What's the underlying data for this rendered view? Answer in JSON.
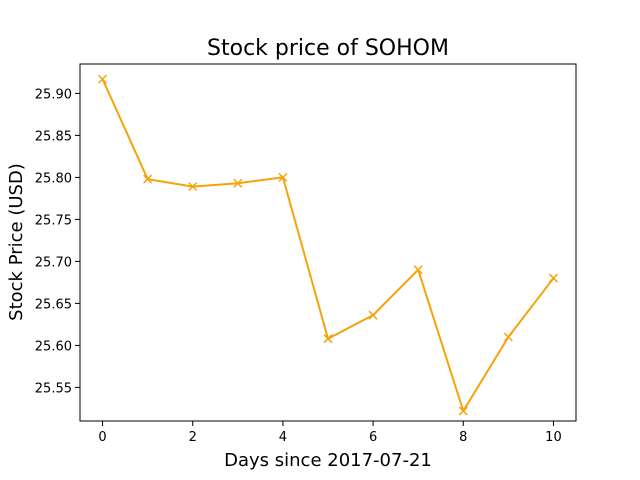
{
  "chart_data": {
    "type": "line",
    "title": "Stock price of SOHOM",
    "xlabel": "Days since 2017-07-21",
    "ylabel": "Stock Price (USD)",
    "xlim": [
      -0.5,
      10.5
    ],
    "ylim": [
      25.51,
      25.935
    ],
    "xticks": [
      0,
      2,
      4,
      6,
      8,
      10
    ],
    "yticks": [
      25.55,
      25.6,
      25.65,
      25.7,
      25.75,
      25.8,
      25.85,
      25.9
    ],
    "grid": false,
    "series": [
      {
        "color": "#f5a30a",
        "marker": "x",
        "x": [
          0,
          1,
          2,
          3,
          4,
          5,
          6,
          7,
          8,
          9,
          10
        ],
        "values": [
          25.917,
          25.798,
          25.789,
          25.793,
          25.8,
          25.608,
          25.636,
          25.69,
          25.522,
          25.61,
          25.68
        ]
      }
    ]
  }
}
